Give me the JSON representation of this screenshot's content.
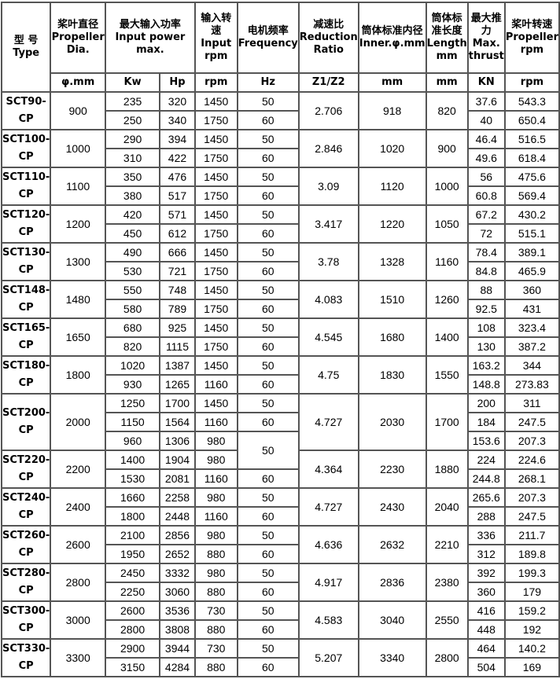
{
  "header": {
    "type": "型 号 Type",
    "dia": "桨叶直径 Propeller Dia.",
    "power": "最大输入功率 Input power max.",
    "input_rpm": "输入转速 Input rpm",
    "freq": "电机频率 Frequency",
    "ratio": "减速比 Reduction Ratio",
    "inner": "筒体标准内径 Inner.φ.mm",
    "length": "筒体标准长度 Length mm",
    "thrust": "最大推力 Max. thrust",
    "prop_rpm": "桨叶转速 Propeller rpm"
  },
  "units": [
    "φ.mm",
    "Kw",
    "Hp",
    "rpm",
    "Hz",
    "Z1/Z2",
    "mm",
    "mm",
    "KN",
    "rpm"
  ],
  "rows": [
    {
      "model": "SCT90-CP",
      "dia": "900",
      "ratio": "2.706",
      "inner": "918",
      "length": "820",
      "sub": [
        [
          "235",
          "320",
          "1450",
          "50",
          "37.6",
          "543.3"
        ],
        [
          "250",
          "340",
          "1750",
          "60",
          "40",
          "650.4"
        ]
      ]
    },
    {
      "model": "SCT100-CP",
      "dia": "1000",
      "ratio": "2.846",
      "inner": "1020",
      "length": "900",
      "sub": [
        [
          "290",
          "394",
          "1450",
          "50",
          "46.4",
          "516.5"
        ],
        [
          "310",
          "422",
          "1750",
          "60",
          "49.6",
          "618.4"
        ]
      ]
    },
    {
      "model": "SCT110-CP",
      "dia": "1100",
      "ratio": "3.09",
      "inner": "1120",
      "length": "1000",
      "sub": [
        [
          "350",
          "476",
          "1450",
          "50",
          "56",
          "475.6"
        ],
        [
          "380",
          "517",
          "1750",
          "60",
          "60.8",
          "569.4"
        ]
      ]
    },
    {
      "model": "SCT120-CP",
      "dia": "1200",
      "ratio": "3.417",
      "inner": "1220",
      "length": "1050",
      "sub": [
        [
          "420",
          "571",
          "1450",
          "50",
          "67.2",
          "430.2"
        ],
        [
          "450",
          "612",
          "1750",
          "60",
          "72",
          "515.1"
        ]
      ]
    },
    {
      "model": "SCT130-CP",
      "dia": "1300",
      "ratio": "3.78",
      "inner": "1328",
      "length": "1160",
      "sub": [
        [
          "490",
          "666",
          "1450",
          "50",
          "78.4",
          "389.1"
        ],
        [
          "530",
          "721",
          "1750",
          "60",
          "84.8",
          "465.9"
        ]
      ]
    },
    {
      "model": "SCT148-CP",
      "dia": "1480",
      "ratio": "4.083",
      "inner": "1510",
      "length": "1260",
      "sub": [
        [
          "550",
          "748",
          "1450",
          "50",
          "88",
          "360"
        ],
        [
          "580",
          "789",
          "1750",
          "60",
          "92.5",
          "431"
        ]
      ]
    },
    {
      "model": "SCT165-CP",
      "dia": "1650",
      "ratio": "4.545",
      "inner": "1680",
      "length": "1400",
      "sub": [
        [
          "680",
          "925",
          "1450",
          "50",
          "108",
          "323.4"
        ],
        [
          "820",
          "1115",
          "1750",
          "60",
          "130",
          "387.2"
        ]
      ]
    },
    {
      "model": "SCT180-CP",
      "dia": "1800",
      "ratio": "4.75",
      "inner": "1830",
      "length": "1550",
      "sub": [
        [
          "1020",
          "1387",
          "1450",
          "50",
          "163.2",
          "344"
        ],
        [
          "930",
          "1265",
          "1160",
          "60",
          "148.8",
          "273.83"
        ]
      ]
    },
    {
      "model": "SCT200-CP",
      "dia": "2000",
      "ratio": "4.727",
      "inner": "2030",
      "length": "1700",
      "sub": [
        [
          "1250",
          "1700",
          "1450",
          "50",
          "200",
          "311"
        ],
        [
          "1150",
          "1564",
          "1160",
          "60",
          "184",
          "247.5"
        ],
        [
          "960",
          "1306",
          "980",
          "50",
          "153.6",
          "207.3"
        ]
      ]
    },
    {
      "model": "SCT220-CP",
      "dia": "2200",
      "ratio": "4.364",
      "inner": "2230",
      "length": "1880",
      "sub": [
        [
          "1400",
          "1904",
          "980",
          null,
          "224",
          "224.6"
        ],
        [
          "1530",
          "2081",
          "1160",
          "60",
          "244.8",
          "268.1"
        ]
      ]
    },
    {
      "model": "SCT240-CP",
      "dia": "2400",
      "ratio": "4.727",
      "inner": "2430",
      "length": "2040",
      "sub": [
        [
          "1660",
          "2258",
          "980",
          "50",
          "265.6",
          "207.3"
        ],
        [
          "1800",
          "2448",
          "1160",
          "60",
          "288",
          "247.5"
        ]
      ]
    },
    {
      "model": "SCT260-CP",
      "dia": "2600",
      "ratio": "4.636",
      "inner": "2632",
      "length": "2210",
      "sub": [
        [
          "2100",
          "2856",
          "980",
          "50",
          "336",
          "211.7"
        ],
        [
          "1950",
          "2652",
          "880",
          "60",
          "312",
          "189.8"
        ]
      ]
    },
    {
      "model": "SCT280-CP",
      "dia": "2800",
      "ratio": "4.917",
      "inner": "2836",
      "length": "2380",
      "sub": [
        [
          "2450",
          "3332",
          "980",
          "50",
          "392",
          "199.3"
        ],
        [
          "2250",
          "3060",
          "880",
          "60",
          "360",
          "179"
        ]
      ]
    },
    {
      "model": "SCT300-CP",
      "dia": "3000",
      "ratio": "4.583",
      "inner": "3040",
      "length": "2550",
      "sub": [
        [
          "2600",
          "3536",
          "730",
          "50",
          "416",
          "159.2"
        ],
        [
          "2800",
          "3808",
          "880",
          "60",
          "448",
          "192"
        ]
      ]
    },
    {
      "model": "SCT330-CP",
      "dia": "3300",
      "ratio": "5.207",
      "inner": "3340",
      "length": "2800",
      "sub": [
        [
          "2900",
          "3944",
          "730",
          "50",
          "464",
          "140.2"
        ],
        [
          "3150",
          "4284",
          "880",
          "60",
          "504",
          "169"
        ]
      ]
    }
  ]
}
